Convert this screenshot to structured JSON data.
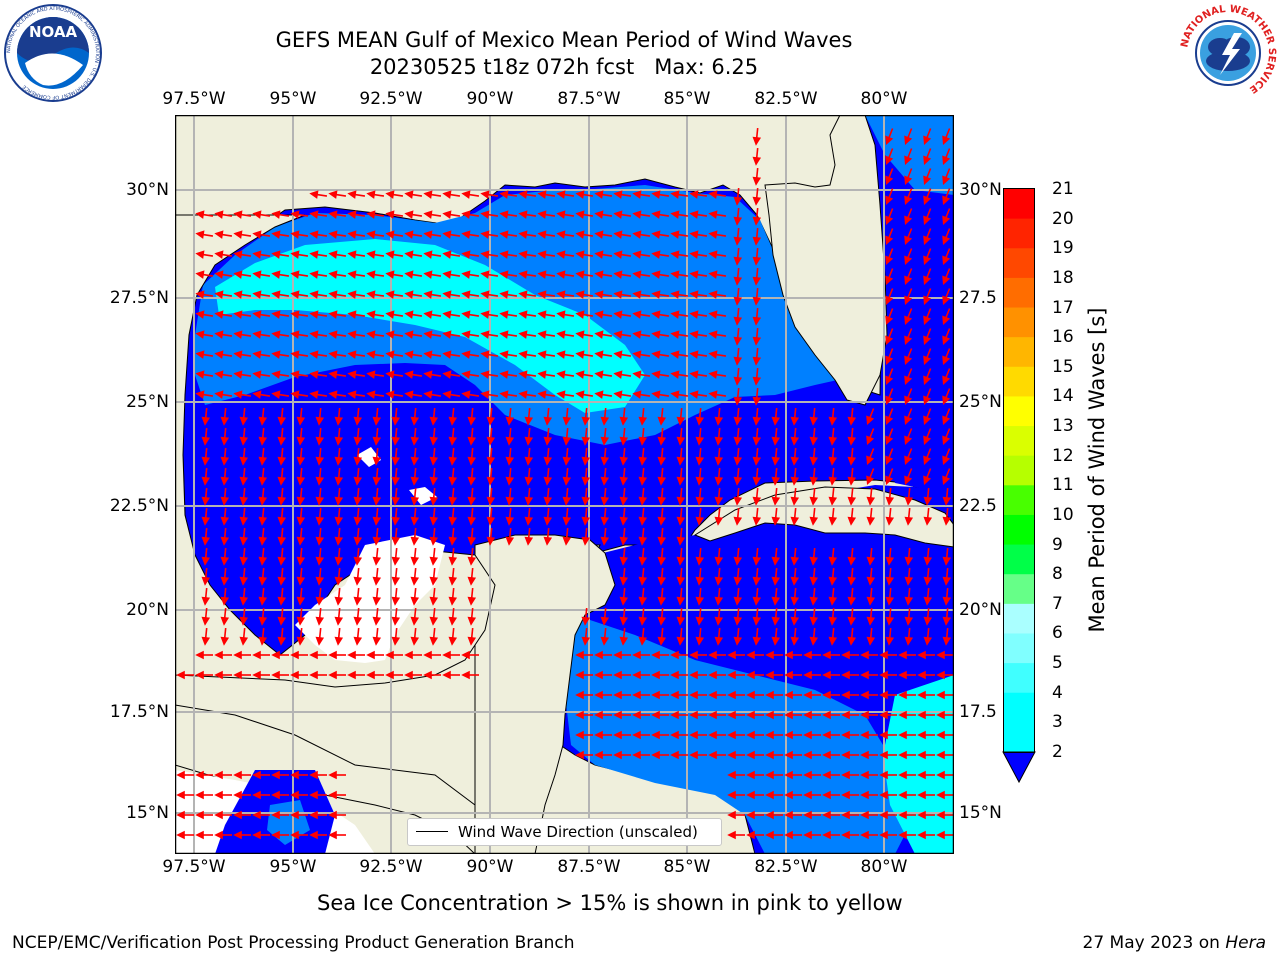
{
  "header": {
    "title_line1": "GEFS MEAN Gulf of Mexico Mean Period of Wind Waves",
    "title_line2": "20230525 t18z 072h fcst   Max: 6.25"
  },
  "logos": {
    "noaa_text": "NOAA",
    "noaa_ring": "NATIONAL OCEANIC AND ATMOSPHERIC ADMINISTRATION · U.S. DEPARTMENT OF COMMERCE",
    "nws_ring": "NATIONAL WEATHER SERVICE"
  },
  "axes": {
    "lon_ticks": [
      "97.5°W",
      "95°W",
      "92.5°W",
      "90°W",
      "87.5°W",
      "85°W",
      "82.5°W",
      "80°W"
    ],
    "lat_ticks_left": [
      "30°N",
      "27.5°N",
      "25°N",
      "22.5°N",
      "20°N",
      "17.5°N",
      "15°N"
    ],
    "lat_ticks_right": [
      "30°N",
      "27.5",
      "25°N",
      "22.5",
      "20°N",
      "17.5",
      "15°N"
    ]
  },
  "colorbar": {
    "label": "Mean Period of Wind Waves [s]",
    "ticks": [
      "21",
      "20",
      "19",
      "18",
      "17",
      "16",
      "15",
      "14",
      "13",
      "12",
      "11",
      "10",
      "9",
      "8",
      "7",
      "6",
      "5",
      "4",
      "3",
      "2"
    ],
    "colors": [
      "#ff0000",
      "#ff2400",
      "#ff4800",
      "#ff6d00",
      "#ff9100",
      "#ffb600",
      "#ffda00",
      "#ffff00",
      "#daff00",
      "#b6ff00",
      "#48ff00",
      "#00ff00",
      "#00ff48",
      "#66ff88",
      "#aaffff",
      "#80ffff",
      "#40ffff",
      "#00ffff",
      "#00ffff",
      "#0066ff"
    ],
    "under_color": "#0000ff"
  },
  "map": {
    "land_color": "#efefdc",
    "ocean_colors": {
      "period_0_2": "#0000ff",
      "period_2_4": "#0080ff",
      "period_4_6": "#00ffff",
      "no_data": "#ffffff"
    },
    "arrow_color": "#ff0000",
    "grid_color": "#b4b4b4"
  },
  "legend": {
    "label": "Wind Wave Direction (unscaled)"
  },
  "note": "Sea Ice Concentration > 15% is shown in pink to yellow",
  "footer": {
    "left": "NCEP/EMC/Verification Post Processing Product Generation Branch",
    "right_date": "27 May 2023 on ",
    "right_machine": "Hera"
  }
}
